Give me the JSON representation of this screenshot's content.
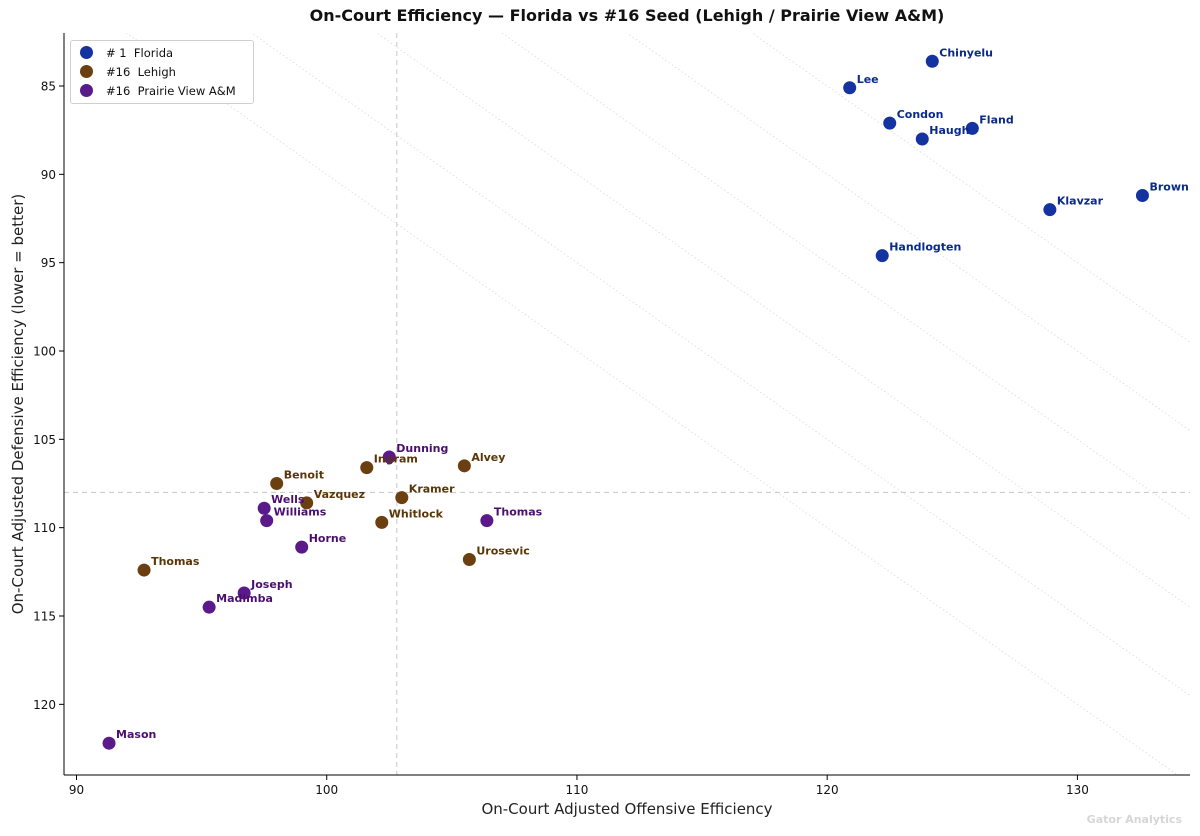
{
  "chart_data": {
    "type": "scatter",
    "title": "On-Court Efficiency — Florida vs #16 Seed (Lehigh / Prairie View A&M)",
    "xlabel": "On-Court Adjusted Offensive Efficiency",
    "ylabel": "On-Court Adjusted Defensive Efficiency  (lower = better)",
    "xlim": [
      89.5,
      134.5
    ],
    "ylim": [
      124,
      82
    ],
    "y_inverted": true,
    "x_ticks": [
      90,
      100,
      110,
      120,
      130
    ],
    "y_ticks": [
      85,
      90,
      95,
      100,
      105,
      110,
      115,
      120
    ],
    "reference_lines": {
      "x": 102.8,
      "y": 108
    },
    "grid": false,
    "legend_position": "top-left",
    "series": [
      {
        "name": "# 1  Florida",
        "color": "#1432a0",
        "label_color": "#0a2a8a",
        "points": [
          {
            "label": "Chinyelu",
            "x": 124.2,
            "y": 83.6
          },
          {
            "label": "Lee",
            "x": 120.9,
            "y": 85.1
          },
          {
            "label": "Condon",
            "x": 122.5,
            "y": 87.1
          },
          {
            "label": "Fland",
            "x": 125.8,
            "y": 87.4
          },
          {
            "label": "Haugh",
            "x": 123.8,
            "y": 88.0
          },
          {
            "label": "Brown",
            "x": 132.6,
            "y": 91.2
          },
          {
            "label": "Klavzar",
            "x": 128.9,
            "y": 92.0
          },
          {
            "label": "Handlogten",
            "x": 122.2,
            "y": 94.6
          }
        ]
      },
      {
        "name": "#16  Lehigh",
        "color": "#6b3f0f",
        "label_color": "#5a3508",
        "points": [
          {
            "label": "Benoit",
            "x": 98.0,
            "y": 107.5
          },
          {
            "label": "Ingram",
            "x": 101.6,
            "y": 106.6
          },
          {
            "label": "Alvey",
            "x": 105.5,
            "y": 106.5
          },
          {
            "label": "Vazquez",
            "x": 99.2,
            "y": 108.6
          },
          {
            "label": "Kramer",
            "x": 103.0,
            "y": 108.3
          },
          {
            "label": "Whitlock",
            "x": 102.2,
            "y": 109.7
          },
          {
            "label": "Urosevic",
            "x": 105.7,
            "y": 111.8
          },
          {
            "label": "Thomas",
            "x": 92.7,
            "y": 112.4
          }
        ]
      },
      {
        "name": "#16  Prairie View A&M",
        "color": "#5b1a8a",
        "label_color": "#4a0f6e",
        "points": [
          {
            "label": "Dunning",
            "x": 102.5,
            "y": 106.0
          },
          {
            "label": "Wells",
            "x": 97.5,
            "y": 108.9
          },
          {
            "label": "Williams",
            "x": 97.6,
            "y": 109.6
          },
          {
            "label": "Thomas",
            "x": 106.4,
            "y": 109.6
          },
          {
            "label": "Horne",
            "x": 99.0,
            "y": 111.1
          },
          {
            "label": "Joseph",
            "x": 96.7,
            "y": 113.7
          },
          {
            "label": "Madimba",
            "x": 95.3,
            "y": 114.5
          },
          {
            "label": "Mason",
            "x": 91.3,
            "y": 122.2
          }
        ]
      }
    ]
  },
  "watermark": "Gator Analytics"
}
